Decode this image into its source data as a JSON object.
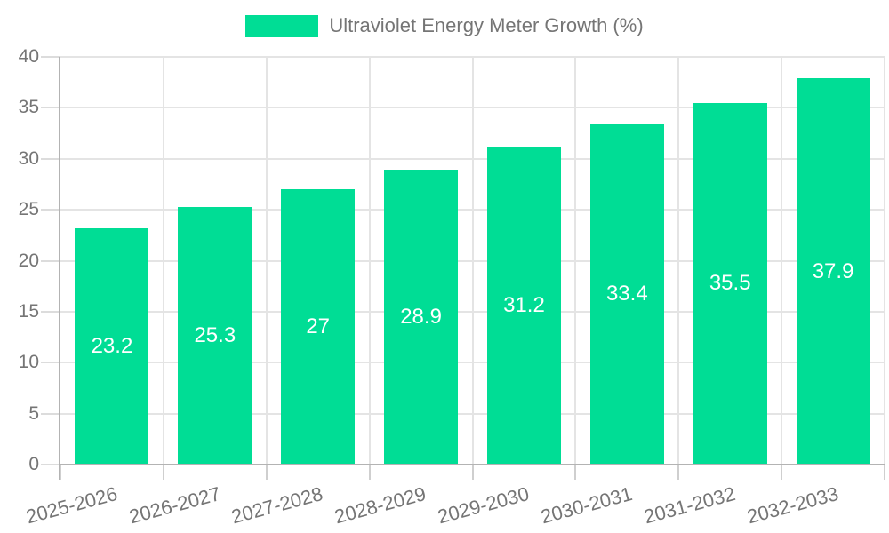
{
  "chart_data": {
    "type": "bar",
    "title": "",
    "legend_position": "top",
    "categories": [
      "2025-2026",
      "2026-2027",
      "2027-2028",
      "2028-2029",
      "2029-2030",
      "2030-2031",
      "2031-2032",
      "2032-2033"
    ],
    "series": [
      {
        "name": "Ultraviolet Energy Meter Growth (%)",
        "values": [
          23.2,
          25.3,
          27,
          28.9,
          31.2,
          33.4,
          35.5,
          37.9
        ]
      }
    ],
    "value_labels": [
      "23.2",
      "25.3",
      "27",
      "28.9",
      "31.2",
      "33.4",
      "35.5",
      "37.9"
    ],
    "xlabel": "",
    "ylabel": "",
    "ylim": [
      0,
      40
    ],
    "yticks": [
      0,
      5,
      10,
      15,
      20,
      25,
      30,
      35,
      40
    ],
    "grid": "on",
    "colors": {
      "bar": "#00DD95",
      "value_label": "#FFFFFF",
      "axis_text": "#757575",
      "grid_line": "#E4E4E4",
      "tick_line": "#D6D6D6",
      "axis_line": "#B3B3B3",
      "background": "#FFFFFF"
    }
  }
}
